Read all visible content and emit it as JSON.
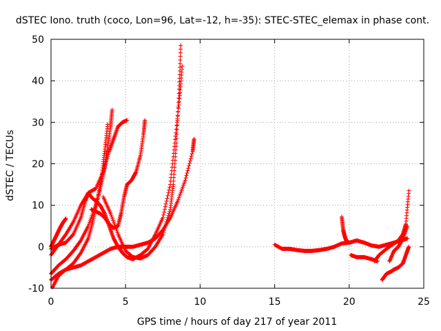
{
  "chart_data": {
    "type": "scatter",
    "title": "dSTEC Iono. truth (coco, Lon=96, Lat=-12, h=-35): STEC-STEC_elemax in phase cont.",
    "xlabel": "GPS time / hours of day 217 of year 2011",
    "ylabel": "dSTEC  / TECUs",
    "xlim": [
      0,
      25
    ],
    "ylim": [
      -10,
      50
    ],
    "xticks": [
      0,
      5,
      10,
      15,
      20,
      25
    ],
    "yticks": [
      -10,
      0,
      10,
      20,
      30,
      40,
      50
    ],
    "xtick_labels": [
      "0",
      "5",
      "10",
      "15",
      "20",
      "25"
    ],
    "ytick_labels": [
      "-10",
      "0",
      "10",
      "20",
      "30",
      "40",
      "50"
    ],
    "grid": true,
    "marker": "+",
    "color": "#ff0000",
    "series": [
      {
        "x": [
          0.0,
          0.2,
          0.4,
          0.6,
          0.8,
          1.0
        ],
        "y": [
          0.0,
          1.5,
          3.0,
          4.5,
          5.8,
          6.8
        ]
      },
      {
        "x": [
          0.0,
          0.5,
          1.0,
          1.5,
          2.0,
          2.3,
          2.5,
          2.7,
          3.0,
          3.3,
          3.6,
          3.9,
          4.2,
          4.5,
          4.8,
          5.1,
          5.5,
          6.0,
          6.5,
          7.0,
          7.5,
          8.0,
          8.3,
          8.6,
          8.8
        ],
        "y": [
          -0.5,
          0.5,
          1.0,
          3.0,
          7.0,
          11.0,
          13.0,
          12.0,
          11.0,
          10.0,
          8.0,
          5.0,
          2.0,
          0.0,
          -1.5,
          -2.5,
          -3.0,
          -2.0,
          -0.5,
          3.0,
          7.0,
          15.0,
          25.0,
          35.0,
          43.5
        ]
      },
      {
        "x": [
          0.0,
          0.5,
          1.0,
          1.5,
          2.0,
          2.5,
          3.0,
          3.5,
          3.9,
          4.2,
          4.5,
          4.8,
          5.1
        ],
        "y": [
          -2.0,
          0.5,
          3.0,
          6.0,
          10.0,
          13.0,
          14.0,
          18.0,
          23.0,
          26.0,
          29.0,
          30.0,
          30.5
        ]
      },
      {
        "x": [
          0.0,
          0.5,
          1.0,
          1.5,
          2.0,
          2.5,
          3.0,
          3.3,
          3.6,
          3.8,
          4.0,
          4.1
        ],
        "y": [
          -6.5,
          -4.5,
          -3.0,
          -1.0,
          1.5,
          5.0,
          10.0,
          14.0,
          19.0,
          24.0,
          29.0,
          33.0
        ]
      },
      {
        "x": [
          0.0,
          0.5,
          1.0,
          1.5,
          2.0,
          2.5,
          2.8,
          3.1,
          3.4,
          3.6,
          3.8
        ],
        "y": [
          -8.0,
          -6.5,
          -5.5,
          -4.0,
          -1.5,
          2.0,
          6.0,
          11.0,
          17.0,
          23.0,
          29.5
        ]
      },
      {
        "x": [
          0.1,
          0.5,
          1.0,
          1.5,
          2.0,
          2.5,
          3.0,
          3.5,
          4.0,
          4.5,
          5.0,
          5.5,
          6.0,
          6.5,
          7.0,
          7.5,
          8.0,
          8.5,
          9.0,
          9.5,
          9.6
        ],
        "y": [
          -9.8,
          -7.0,
          -5.5,
          -5.0,
          -4.5,
          -3.5,
          -2.5,
          -1.5,
          -0.5,
          0.0,
          0.0,
          0.0,
          0.5,
          1.0,
          2.0,
          4.0,
          7.0,
          11.0,
          16.0,
          23.0,
          26.0
        ]
      },
      {
        "x": [
          3.5,
          4.0,
          4.5,
          5.0,
          5.5,
          6.0,
          6.5,
          7.0,
          7.5,
          8.0,
          8.2,
          8.4,
          8.6,
          8.7
        ],
        "y": [
          12.0,
          8.0,
          3.0,
          -1.0,
          -2.5,
          -2.8,
          -2.0,
          0.0,
          3.0,
          9.0,
          15.0,
          25.0,
          38.0,
          48.5
        ]
      },
      {
        "x": [
          2.7,
          3.0,
          3.3,
          3.6,
          3.9,
          4.2,
          4.5,
          4.7,
          4.9,
          5.1,
          5.4,
          5.7,
          6.0,
          6.2,
          6.3
        ],
        "y": [
          9.0,
          8.5,
          8.0,
          7.0,
          5.5,
          4.5,
          5.0,
          8.0,
          12.0,
          15.0,
          16.0,
          18.0,
          22.0,
          27.0,
          30.5
        ]
      },
      {
        "x": [
          15.0,
          15.5,
          16.0,
          16.5,
          17.0,
          17.5,
          18.0,
          18.5,
          19.0,
          19.5,
          20.0,
          20.5,
          21.0,
          21.5,
          22.0,
          22.5,
          23.0,
          23.5,
          23.9
        ],
        "y": [
          0.5,
          -0.5,
          -0.5,
          -0.8,
          -1.0,
          -1.0,
          -0.8,
          -0.5,
          0.0,
          0.8,
          1.0,
          1.5,
          1.0,
          0.3,
          0.0,
          0.5,
          1.0,
          1.5,
          2.0
        ]
      },
      {
        "x": [
          19.5,
          19.6,
          19.7,
          19.8,
          20.0
        ],
        "y": [
          7.2,
          4.0,
          2.5,
          1.5,
          1.0
        ]
      },
      {
        "x": [
          20.1,
          20.5,
          21.0,
          21.5,
          21.9
        ],
        "y": [
          -2.0,
          -2.5,
          -2.5,
          -3.0,
          -3.5
        ]
      },
      {
        "x": [
          21.7,
          22.0,
          22.5,
          23.0,
          23.3,
          23.6,
          23.8,
          24.0
        ],
        "y": [
          -3.5,
          -2.0,
          -0.5,
          0.8,
          1.5,
          3.0,
          5.5,
          13.5
        ]
      },
      {
        "x": [
          22.2,
          22.5,
          22.8,
          23.0,
          23.3,
          23.6,
          23.8,
          24.0
        ],
        "y": [
          -8.0,
          -6.5,
          -6.0,
          -5.5,
          -5.0,
          -4.0,
          -2.0,
          0.0
        ]
      },
      {
        "x": [
          22.7,
          23.0,
          23.3,
          23.6,
          23.9
        ],
        "y": [
          -3.5,
          -1.0,
          0.0,
          2.0,
          5.0
        ]
      }
    ]
  }
}
